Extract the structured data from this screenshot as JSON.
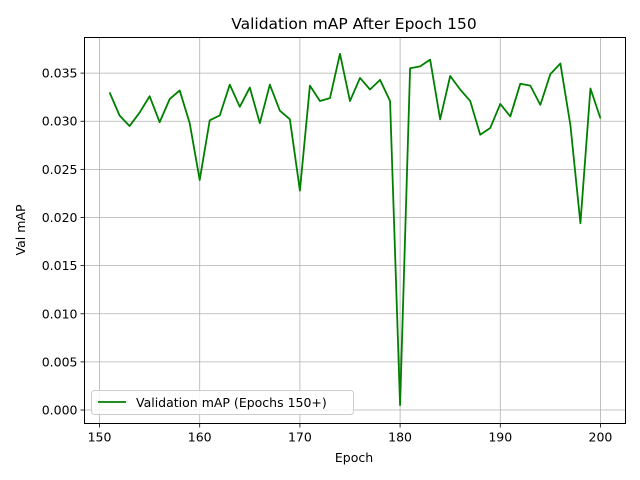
{
  "chart_data": {
    "type": "line",
    "title": "Validation mAP After Epoch 150",
    "xlabel": "Epoch",
    "ylabel": "Val mAP",
    "xlim": [
      148.5,
      202.5
    ],
    "ylim": [
      -0.0014,
      0.0387
    ],
    "x_ticks": [
      150,
      160,
      170,
      180,
      190,
      200
    ],
    "x_tick_labels": [
      "150",
      "160",
      "170",
      "180",
      "190",
      "200"
    ],
    "y_ticks": [
      0.0,
      0.005,
      0.01,
      0.015,
      0.02,
      0.025,
      0.03,
      0.035
    ],
    "y_tick_labels": [
      "0.000",
      "0.005",
      "0.010",
      "0.015",
      "0.020",
      "0.025",
      "0.030",
      "0.035"
    ],
    "grid": true,
    "legend_position": "lower-left",
    "series": [
      {
        "name": "Validation mAP (Epochs 150+)",
        "color": "#008000",
        "x": [
          151,
          152,
          153,
          154,
          155,
          156,
          157,
          158,
          159,
          160,
          161,
          162,
          163,
          164,
          165,
          166,
          167,
          168,
          169,
          170,
          171,
          172,
          173,
          174,
          175,
          176,
          177,
          178,
          179,
          180,
          181,
          182,
          183,
          184,
          185,
          186,
          187,
          188,
          189,
          190,
          191,
          192,
          193,
          194,
          195,
          196,
          197,
          198,
          199,
          200
        ],
        "y": [
          0.033,
          0.0306,
          0.0295,
          0.0309,
          0.0326,
          0.0299,
          0.0323,
          0.0332,
          0.0298,
          0.0239,
          0.0301,
          0.0306,
          0.0338,
          0.0315,
          0.0335,
          0.0298,
          0.0338,
          0.0311,
          0.0302,
          0.0228,
          0.0337,
          0.0321,
          0.0324,
          0.037,
          0.0321,
          0.0345,
          0.0333,
          0.0343,
          0.0321,
          0.0005,
          0.0355,
          0.0357,
          0.0364,
          0.0302,
          0.0347,
          0.0333,
          0.0321,
          0.0286,
          0.0293,
          0.0318,
          0.0305,
          0.0339,
          0.0337,
          0.0317,
          0.0349,
          0.036,
          0.0296,
          0.0194,
          0.0334,
          0.0303
        ]
      }
    ]
  }
}
